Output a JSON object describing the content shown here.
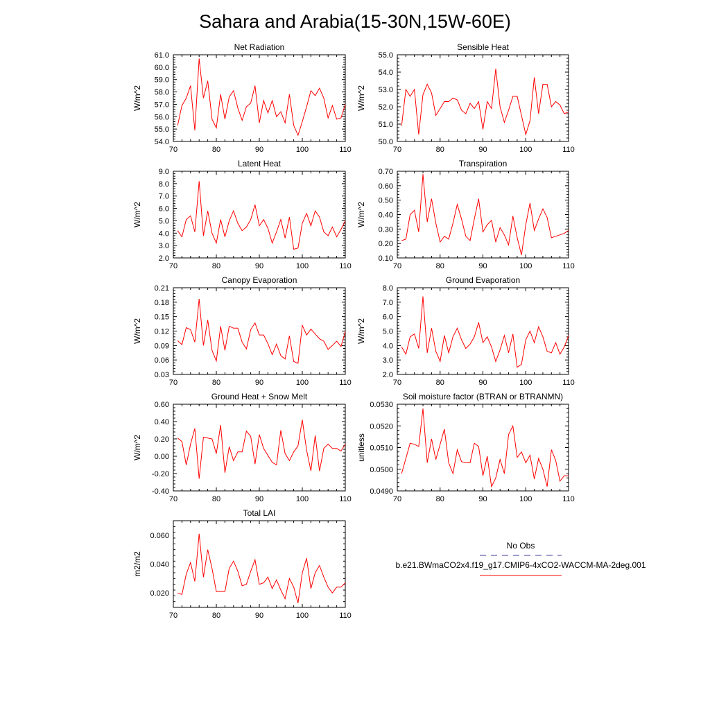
{
  "figure": {
    "title": "Sahara and Arabia(15-30N,15W-60E)",
    "colors": {
      "model_line": "#ff0000",
      "obs_line": "#3c3c9a",
      "axis": "#000000"
    },
    "legend": {
      "obs_label": "No Obs",
      "model_label": "b.e21.BWmaCO2x4.f19_g17.CMIP6-4xCO2-WACCM-MA-2deg.001"
    }
  },
  "chart_data": [
    {
      "type": "line",
      "title": "Net Radiation",
      "ylabel": "W/m^2",
      "xlim": [
        70,
        110
      ],
      "ylim": [
        54,
        61
      ],
      "xticks": [
        70,
        80,
        90,
        100,
        110
      ],
      "xtick_labels": [
        "70",
        "80",
        "90",
        "100",
        "110"
      ],
      "yticks": [
        54,
        55,
        56,
        57,
        58,
        59,
        60,
        61
      ],
      "ytick_labels": [
        "54.0",
        "55.0",
        "56.0",
        "57.0",
        "58.0",
        "59.0",
        "60.0",
        "61.0"
      ],
      "x": [
        71,
        72,
        73,
        74,
        75,
        76,
        77,
        78,
        79,
        80,
        81,
        82,
        83,
        84,
        85,
        86,
        87,
        88,
        89,
        90,
        91,
        92,
        93,
        94,
        95,
        96,
        97,
        98,
        99,
        100,
        101,
        102,
        103,
        104,
        105,
        106,
        107,
        108,
        109,
        110
      ],
      "series": [
        {
          "name": "b.e21.BWmaCO2x4.f19_g17.CMIP6-4xCO2-WACCM-MA-2deg.001",
          "values": [
            55.3,
            56.9,
            57.5,
            58.5,
            54.9,
            60.7,
            57.5,
            58.9,
            55.8,
            55.1,
            57.8,
            55.8,
            57.6,
            58.1,
            56.7,
            55.7,
            56.8,
            57.1,
            58.5,
            55.5,
            57.3,
            56.3,
            57.3,
            56.0,
            56.4,
            55.5,
            57.8,
            55.3,
            54.5,
            55.6,
            56.8,
            58.1,
            57.7,
            58.3,
            57.5,
            55.9,
            56.9,
            55.8,
            55.9,
            57.0
          ]
        }
      ]
    },
    {
      "type": "line",
      "title": "Sensible Heat",
      "ylabel": "W/m^2",
      "xlim": [
        70,
        110
      ],
      "ylim": [
        50,
        55
      ],
      "xticks": [
        70,
        80,
        90,
        100,
        110
      ],
      "xtick_labels": [
        "70",
        "80",
        "90",
        "100",
        "110"
      ],
      "yticks": [
        50,
        51,
        52,
        53,
        54,
        55
      ],
      "ytick_labels": [
        "50.0",
        "51.0",
        "52.0",
        "53.0",
        "54.0",
        "55.0"
      ],
      "x": [
        71,
        72,
        73,
        74,
        75,
        76,
        77,
        78,
        79,
        80,
        81,
        82,
        83,
        84,
        85,
        86,
        87,
        88,
        89,
        90,
        91,
        92,
        93,
        94,
        95,
        96,
        97,
        98,
        99,
        100,
        101,
        102,
        103,
        104,
        105,
        106,
        107,
        108,
        109,
        110
      ],
      "series": [
        {
          "name": "b.e21.BWmaCO2x4.f19_g17.CMIP6-4xCO2-WACCM-MA-2deg.001",
          "values": [
            50.9,
            53.0,
            52.6,
            53.0,
            50.4,
            52.7,
            53.3,
            52.8,
            51.5,
            51.9,
            52.3,
            52.3,
            52.5,
            52.4,
            51.8,
            51.6,
            52.2,
            51.9,
            52.3,
            50.7,
            52.3,
            51.9,
            54.2,
            52.0,
            51.1,
            51.8,
            52.6,
            52.6,
            51.5,
            50.4,
            51.2,
            53.7,
            51.6,
            53.3,
            53.3,
            52.0,
            52.3,
            52.1,
            51.6,
            51.7
          ]
        }
      ]
    },
    {
      "type": "line",
      "title": "Latent Heat",
      "ylabel": "W/m^2",
      "xlim": [
        70,
        110
      ],
      "ylim": [
        2,
        9
      ],
      "xticks": [
        70,
        80,
        90,
        100,
        110
      ],
      "xtick_labels": [
        "70",
        "80",
        "90",
        "100",
        "110"
      ],
      "yticks": [
        2,
        3,
        4,
        5,
        6,
        7,
        8,
        9
      ],
      "ytick_labels": [
        "2.0",
        "3.0",
        "4.0",
        "5.0",
        "6.0",
        "7.0",
        "8.0",
        "9.0"
      ],
      "x": [
        71,
        72,
        73,
        74,
        75,
        76,
        77,
        78,
        79,
        80,
        81,
        82,
        83,
        84,
        85,
        86,
        87,
        88,
        89,
        90,
        91,
        92,
        93,
        94,
        95,
        96,
        97,
        98,
        99,
        100,
        101,
        102,
        103,
        104,
        105,
        106,
        107,
        108,
        109,
        110
      ],
      "series": [
        {
          "name": "b.e21.BWmaCO2x4.f19_g17.CMIP6-4xCO2-WACCM-MA-2deg.001",
          "values": [
            4.2,
            3.7,
            5.1,
            5.4,
            4.1,
            8.2,
            3.8,
            5.8,
            4.0,
            3.2,
            5.1,
            3.7,
            5.0,
            5.8,
            4.8,
            4.2,
            4.5,
            5.1,
            6.3,
            4.6,
            5.1,
            4.4,
            3.2,
            4.1,
            5.1,
            3.6,
            5.3,
            2.7,
            2.8,
            4.8,
            5.6,
            4.6,
            5.8,
            5.3,
            4.1,
            3.8,
            4.5,
            3.7,
            4.3,
            5.0
          ]
        }
      ]
    },
    {
      "type": "line",
      "title": "Transpiration",
      "ylabel": "W/m^2",
      "xlim": [
        70,
        110
      ],
      "ylim": [
        0.1,
        0.7
      ],
      "xticks": [
        70,
        80,
        90,
        100,
        110
      ],
      "xtick_labels": [
        "70",
        "80",
        "90",
        "100",
        "110"
      ],
      "yticks": [
        0.1,
        0.2,
        0.3,
        0.4,
        0.5,
        0.6,
        0.7
      ],
      "ytick_labels": [
        "0.10",
        "0.20",
        "0.30",
        "0.40",
        "0.50",
        "0.60",
        "0.70"
      ],
      "x": [
        71,
        72,
        73,
        74,
        75,
        76,
        77,
        78,
        79,
        80,
        81,
        82,
        83,
        84,
        85,
        86,
        87,
        88,
        89,
        90,
        91,
        92,
        93,
        94,
        95,
        96,
        97,
        98,
        99,
        100,
        101,
        102,
        103,
        104,
        105,
        106,
        107,
        108,
        109,
        110
      ],
      "series": [
        {
          "name": "b.e21.BWmaCO2x4.f19_g17.CMIP6-4xCO2-WACCM-MA-2deg.001",
          "values": [
            0.22,
            0.23,
            0.4,
            0.43,
            0.28,
            0.68,
            0.35,
            0.51,
            0.34,
            0.21,
            0.25,
            0.23,
            0.34,
            0.47,
            0.37,
            0.25,
            0.22,
            0.37,
            0.51,
            0.28,
            0.33,
            0.36,
            0.21,
            0.31,
            0.26,
            0.19,
            0.39,
            0.24,
            0.12,
            0.33,
            0.48,
            0.29,
            0.37,
            0.44,
            0.38,
            0.24,
            0.25,
            0.26,
            0.27,
            0.29
          ]
        }
      ]
    },
    {
      "type": "line",
      "title": "Canopy Evaporation",
      "ylabel": "W/m^2",
      "xlim": [
        70,
        110
      ],
      "ylim": [
        0.03,
        0.21
      ],
      "xticks": [
        70,
        80,
        90,
        100,
        110
      ],
      "xtick_labels": [
        "70",
        "80",
        "90",
        "100",
        "110"
      ],
      "yticks": [
        0.03,
        0.06,
        0.09,
        0.12,
        0.15,
        0.18,
        0.21
      ],
      "ytick_labels": [
        "0.03",
        "0.06",
        "0.09",
        "0.12",
        "0.15",
        "0.18",
        "0.21"
      ],
      "x": [
        71,
        72,
        73,
        74,
        75,
        76,
        77,
        78,
        79,
        80,
        81,
        82,
        83,
        84,
        85,
        86,
        87,
        88,
        89,
        90,
        91,
        92,
        93,
        94,
        95,
        96,
        97,
        98,
        99,
        100,
        101,
        102,
        103,
        104,
        105,
        106,
        107,
        108,
        109,
        110
      ],
      "series": [
        {
          "name": "b.e21.BWmaCO2x4.f19_g17.CMIP6-4xCO2-WACCM-MA-2deg.001",
          "values": [
            0.1,
            0.092,
            0.127,
            0.123,
            0.097,
            0.187,
            0.09,
            0.143,
            0.08,
            0.058,
            0.13,
            0.08,
            0.13,
            0.126,
            0.126,
            0.097,
            0.083,
            0.123,
            0.137,
            0.112,
            0.112,
            0.094,
            0.071,
            0.093,
            0.069,
            0.062,
            0.11,
            0.057,
            0.053,
            0.132,
            0.112,
            0.124,
            0.114,
            0.104,
            0.099,
            0.082,
            0.09,
            0.099,
            0.088,
            0.119
          ]
        }
      ]
    },
    {
      "type": "line",
      "title": "Ground Evaporation",
      "ylabel": "W/m^2",
      "xlim": [
        70,
        110
      ],
      "ylim": [
        2,
        8
      ],
      "xticks": [
        70,
        80,
        90,
        100,
        110
      ],
      "xtick_labels": [
        "70",
        "80",
        "90",
        "100",
        "110"
      ],
      "yticks": [
        2,
        3,
        4,
        5,
        6,
        7,
        8
      ],
      "ytick_labels": [
        "2.0",
        "3.0",
        "4.0",
        "5.0",
        "6.0",
        "7.0",
        "8.0"
      ],
      "x": [
        71,
        72,
        73,
        74,
        75,
        76,
        77,
        78,
        79,
        80,
        81,
        82,
        83,
        84,
        85,
        86,
        87,
        88,
        89,
        90,
        91,
        92,
        93,
        94,
        95,
        96,
        97,
        98,
        99,
        100,
        101,
        102,
        103,
        104,
        105,
        106,
        107,
        108,
        109,
        110
      ],
      "series": [
        {
          "name": "b.e21.BWmaCO2x4.f19_g17.CMIP6-4xCO2-WACCM-MA-2deg.001",
          "values": [
            3.9,
            3.4,
            4.6,
            4.8,
            3.8,
            7.4,
            3.5,
            5.2,
            3.6,
            2.9,
            4.7,
            3.5,
            4.6,
            5.2,
            4.4,
            3.8,
            4.1,
            4.6,
            5.6,
            4.2,
            4.6,
            3.9,
            2.9,
            3.7,
            4.7,
            3.5,
            4.8,
            2.5,
            2.7,
            4.4,
            5.0,
            4.2,
            5.3,
            4.6,
            3.6,
            3.5,
            4.2,
            3.4,
            3.9,
            4.7
          ]
        }
      ]
    },
    {
      "type": "line",
      "title": "Ground Heat + Snow Melt",
      "ylabel": "W/m^2",
      "xlim": [
        70,
        110
      ],
      "ylim": [
        -0.4,
        0.6
      ],
      "xticks": [
        70,
        80,
        90,
        100,
        110
      ],
      "xtick_labels": [
        "70",
        "80",
        "90",
        "100",
        "110"
      ],
      "yticks": [
        -0.4,
        -0.2,
        0.0,
        0.2,
        0.4,
        0.6
      ],
      "ytick_labels": [
        "-0.40",
        "-0.20",
        "0.00",
        "0.20",
        "0.40",
        "0.60"
      ],
      "x": [
        71,
        72,
        73,
        74,
        75,
        76,
        77,
        78,
        79,
        80,
        81,
        82,
        83,
        84,
        85,
        86,
        87,
        88,
        89,
        90,
        91,
        92,
        93,
        94,
        95,
        96,
        97,
        98,
        99,
        100,
        101,
        102,
        103,
        104,
        105,
        106,
        107,
        108,
        109,
        110
      ],
      "series": [
        {
          "name": "b.e21.BWmaCO2x4.f19_g17.CMIP6-4xCO2-WACCM-MA-2deg.001",
          "values": [
            0.21,
            0.17,
            -0.1,
            0.14,
            0.32,
            -0.26,
            0.22,
            0.21,
            0.2,
            0.03,
            0.36,
            -0.19,
            0.11,
            -0.05,
            0.05,
            0.05,
            0.29,
            0.23,
            -0.09,
            0.25,
            0.09,
            0.01,
            -0.07,
            -0.1,
            0.3,
            0.03,
            -0.05,
            0.05,
            0.12,
            0.42,
            0.07,
            -0.17,
            0.24,
            -0.17,
            0.09,
            0.14,
            0.09,
            0.09,
            0.06,
            0.14
          ]
        }
      ]
    },
    {
      "type": "line",
      "title": "Soil moisture factor (BTRAN or BTRANMN)",
      "ylabel": "unitless",
      "xlim": [
        70,
        110
      ],
      "ylim": [
        0.049,
        0.053
      ],
      "xticks": [
        70,
        80,
        90,
        100,
        110
      ],
      "xtick_labels": [
        "70",
        "80",
        "90",
        "100",
        "110"
      ],
      "yticks": [
        0.049,
        0.05,
        0.051,
        0.052,
        0.053
      ],
      "ytick_labels": [
        "0.0490",
        "0.0500",
        "0.0510",
        "0.0520",
        "0.0530"
      ],
      "x": [
        71,
        72,
        73,
        74,
        75,
        76,
        77,
        78,
        79,
        80,
        81,
        82,
        83,
        84,
        85,
        86,
        87,
        88,
        89,
        90,
        91,
        92,
        93,
        94,
        95,
        96,
        97,
        98,
        99,
        100,
        101,
        102,
        103,
        104,
        105,
        106,
        107,
        108,
        109,
        110
      ],
      "series": [
        {
          "name": "b.e21.BWmaCO2x4.f19_g17.CMIP6-4xCO2-WACCM-MA-2deg.001",
          "values": [
            0.0498,
            0.0505,
            0.0512,
            0.05115,
            0.05105,
            0.0528,
            0.0503,
            0.0514,
            0.05045,
            0.05115,
            0.05185,
            0.0503,
            0.0498,
            0.0509,
            0.05035,
            0.0503,
            0.0503,
            0.0512,
            0.05105,
            0.0497,
            0.0506,
            0.0492,
            0.0496,
            0.05045,
            0.0498,
            0.0516,
            0.052,
            0.05055,
            0.0508,
            0.0503,
            0.05065,
            0.04955,
            0.0505,
            0.05,
            0.0492,
            0.0509,
            0.0504,
            0.04945,
            0.0497,
            0.0497
          ]
        }
      ]
    },
    {
      "type": "line",
      "title": "Total LAI",
      "ylabel": "m2/m2",
      "xlim": [
        70,
        110
      ],
      "ylim": [
        0.01,
        0.07
      ],
      "xticks": [
        70,
        80,
        90,
        100,
        110
      ],
      "xtick_labels": [
        "70",
        "80",
        "90",
        "100",
        "110"
      ],
      "yticks": [
        0.02,
        0.04,
        0.06
      ],
      "ytick_labels": [
        "0.020",
        "0.040",
        "0.060"
      ],
      "x": [
        71,
        72,
        73,
        74,
        75,
        76,
        77,
        78,
        79,
        80,
        81,
        82,
        83,
        84,
        85,
        86,
        87,
        88,
        89,
        90,
        91,
        92,
        93,
        94,
        95,
        96,
        97,
        98,
        99,
        100,
        101,
        102,
        103,
        104,
        105,
        106,
        107,
        108,
        109,
        110
      ],
      "series": [
        {
          "name": "b.e21.BWmaCO2x4.f19_g17.CMIP6-4xCO2-WACCM-MA-2deg.001",
          "values": [
            0.02,
            0.019,
            0.033,
            0.041,
            0.028,
            0.061,
            0.031,
            0.05,
            0.037,
            0.021,
            0.021,
            0.021,
            0.037,
            0.042,
            0.035,
            0.025,
            0.026,
            0.035,
            0.043,
            0.026,
            0.027,
            0.031,
            0.023,
            0.029,
            0.022,
            0.016,
            0.03,
            0.024,
            0.013,
            0.034,
            0.044,
            0.023,
            0.034,
            0.039,
            0.031,
            0.024,
            0.02,
            0.024,
            0.024,
            0.027
          ]
        }
      ]
    }
  ]
}
